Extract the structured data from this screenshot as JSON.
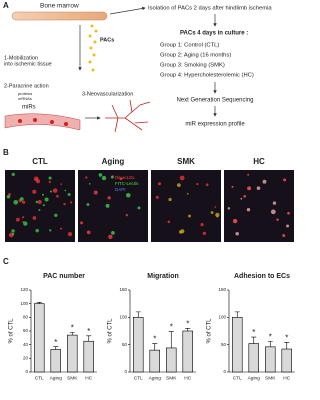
{
  "panel_a": {
    "label": "A",
    "bone_marrow": "Bone marrow",
    "pacs": "PACs",
    "mobilization": [
      "1-Mobilization",
      "into ischemic tissue"
    ],
    "paracrine": "2-Paracrine action",
    "cargo": [
      "proteins",
      "mRNAs"
    ],
    "mirs": "miRs",
    "neovascularization": "3-Neovascularization",
    "isolation": "Isolation of PACs 2 days after hindlimb ischemia",
    "culture": "PACs 4 days in culture :",
    "groups": [
      "Group 1: Control (CTL)",
      "Group 2: Aging (16 months)",
      "Group 3: Smoking (SMK)",
      "Group 4: Hypercholesterolemic (HC)"
    ],
    "sequencing": "Next Generation Sequencing",
    "profile": "miR expression profile"
  },
  "panel_b": {
    "label": "B",
    "images": [
      "CTL",
      "Aging",
      "SMK",
      "HC"
    ],
    "stains": [
      "DiI-acLDL",
      "FITC-Lectin",
      "DAPI"
    ]
  },
  "panel_c": {
    "label": "C"
  },
  "chart_data": [
    {
      "type": "bar",
      "title": "PAC number",
      "y_label": "% of CTL",
      "categories": [
        "CTL",
        "Aging",
        "SMK",
        "HC"
      ],
      "values": [
        100,
        33,
        54,
        45
      ],
      "errors": [
        2,
        4,
        4,
        8
      ],
      "significance": [
        null,
        "*",
        "*",
        "*"
      ],
      "color": "#d9d9d9",
      "ylim": [
        0,
        120
      ],
      "yticks": [
        0,
        20,
        40,
        60,
        80,
        100,
        120
      ]
    },
    {
      "type": "bar",
      "title": "Migration",
      "y_label": "% of CTL",
      "categories": [
        "CTL",
        "Aging",
        "SMK",
        "HC"
      ],
      "values": [
        100,
        40,
        44,
        75
      ],
      "errors": [
        10,
        12,
        30,
        5
      ],
      "significance": [
        null,
        "*",
        "*",
        "*"
      ],
      "color": "#d9d9d9",
      "ylim": [
        0,
        150
      ],
      "yticks": [
        0,
        50,
        100,
        150
      ]
    },
    {
      "type": "bar",
      "title": "Adhesion to ECs",
      "y_label": "% of CTL",
      "categories": [
        "CTL",
        "Aging",
        "SMK",
        "HC"
      ],
      "values": [
        100,
        52,
        46,
        42
      ],
      "errors": [
        10,
        12,
        10,
        12
      ],
      "significance": [
        null,
        "*",
        "*",
        "*"
      ],
      "color": "#d9d9d9",
      "ylim": [
        0,
        150
      ],
      "yticks": [
        0,
        50,
        100,
        150
      ]
    }
  ]
}
